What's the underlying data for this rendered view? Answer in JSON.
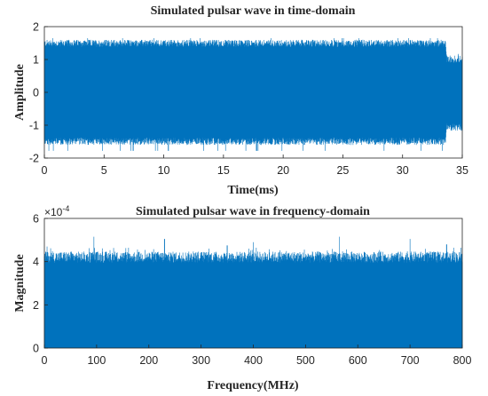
{
  "chart_data": [
    {
      "type": "line",
      "title": "Simulated pulsar wave in time-domain",
      "xlabel": "Time(ms)",
      "ylabel": "Amplitude",
      "xlim": [
        0,
        35
      ],
      "ylim": [
        -2,
        2
      ],
      "xticks": [
        "0",
        "5",
        "10",
        "15",
        "20",
        "25",
        "30",
        "35"
      ],
      "yticks": [
        "-2",
        "-1",
        "0",
        "1",
        "2"
      ],
      "grid": false,
      "color": "#0072BD",
      "series": [
        {
          "values_described": "dense noise-like oscillation",
          "envelope": [
            {
              "x": 0,
              "upper": 1.48,
              "lower": -1.48
            },
            {
              "x": 33.6,
              "upper": 1.48,
              "lower": -1.48
            },
            {
              "x": 33.7,
              "upper": 1.0,
              "lower": -1.05
            },
            {
              "x": 35,
              "upper": 1.0,
              "lower": -1.05
            }
          ],
          "peak_max": 1.65,
          "peak_min": -1.8
        }
      ]
    },
    {
      "type": "area",
      "title": "Simulated pulsar wave in frequency-domain",
      "xlabel": "Frequency(MHz)",
      "ylabel": "Magnitude",
      "xlim": [
        0,
        800
      ],
      "ylim": [
        0,
        6
      ],
      "y_multiplier": "×10",
      "y_multiplier_exponent": "-4",
      "xticks": [
        "0",
        "100",
        "200",
        "300",
        "400",
        "500",
        "600",
        "700",
        "800"
      ],
      "yticks": [
        "0",
        "2",
        "4",
        "6"
      ],
      "grid": false,
      "color": "#0072BD",
      "series": [
        {
          "baseline_fill": 3.95,
          "typical_peak": 4.4,
          "notable_peaks": [
            {
              "x": 5,
              "y": 4.7
            },
            {
              "x": 95,
              "y": 5.15
            },
            {
              "x": 230,
              "y": 5.05
            },
            {
              "x": 350,
              "y": 4.75
            },
            {
              "x": 400,
              "y": 4.9
            },
            {
              "x": 565,
              "y": 5.15
            },
            {
              "x": 700,
              "y": 5.05
            },
            {
              "x": 770,
              "y": 4.8
            }
          ]
        }
      ]
    }
  ]
}
